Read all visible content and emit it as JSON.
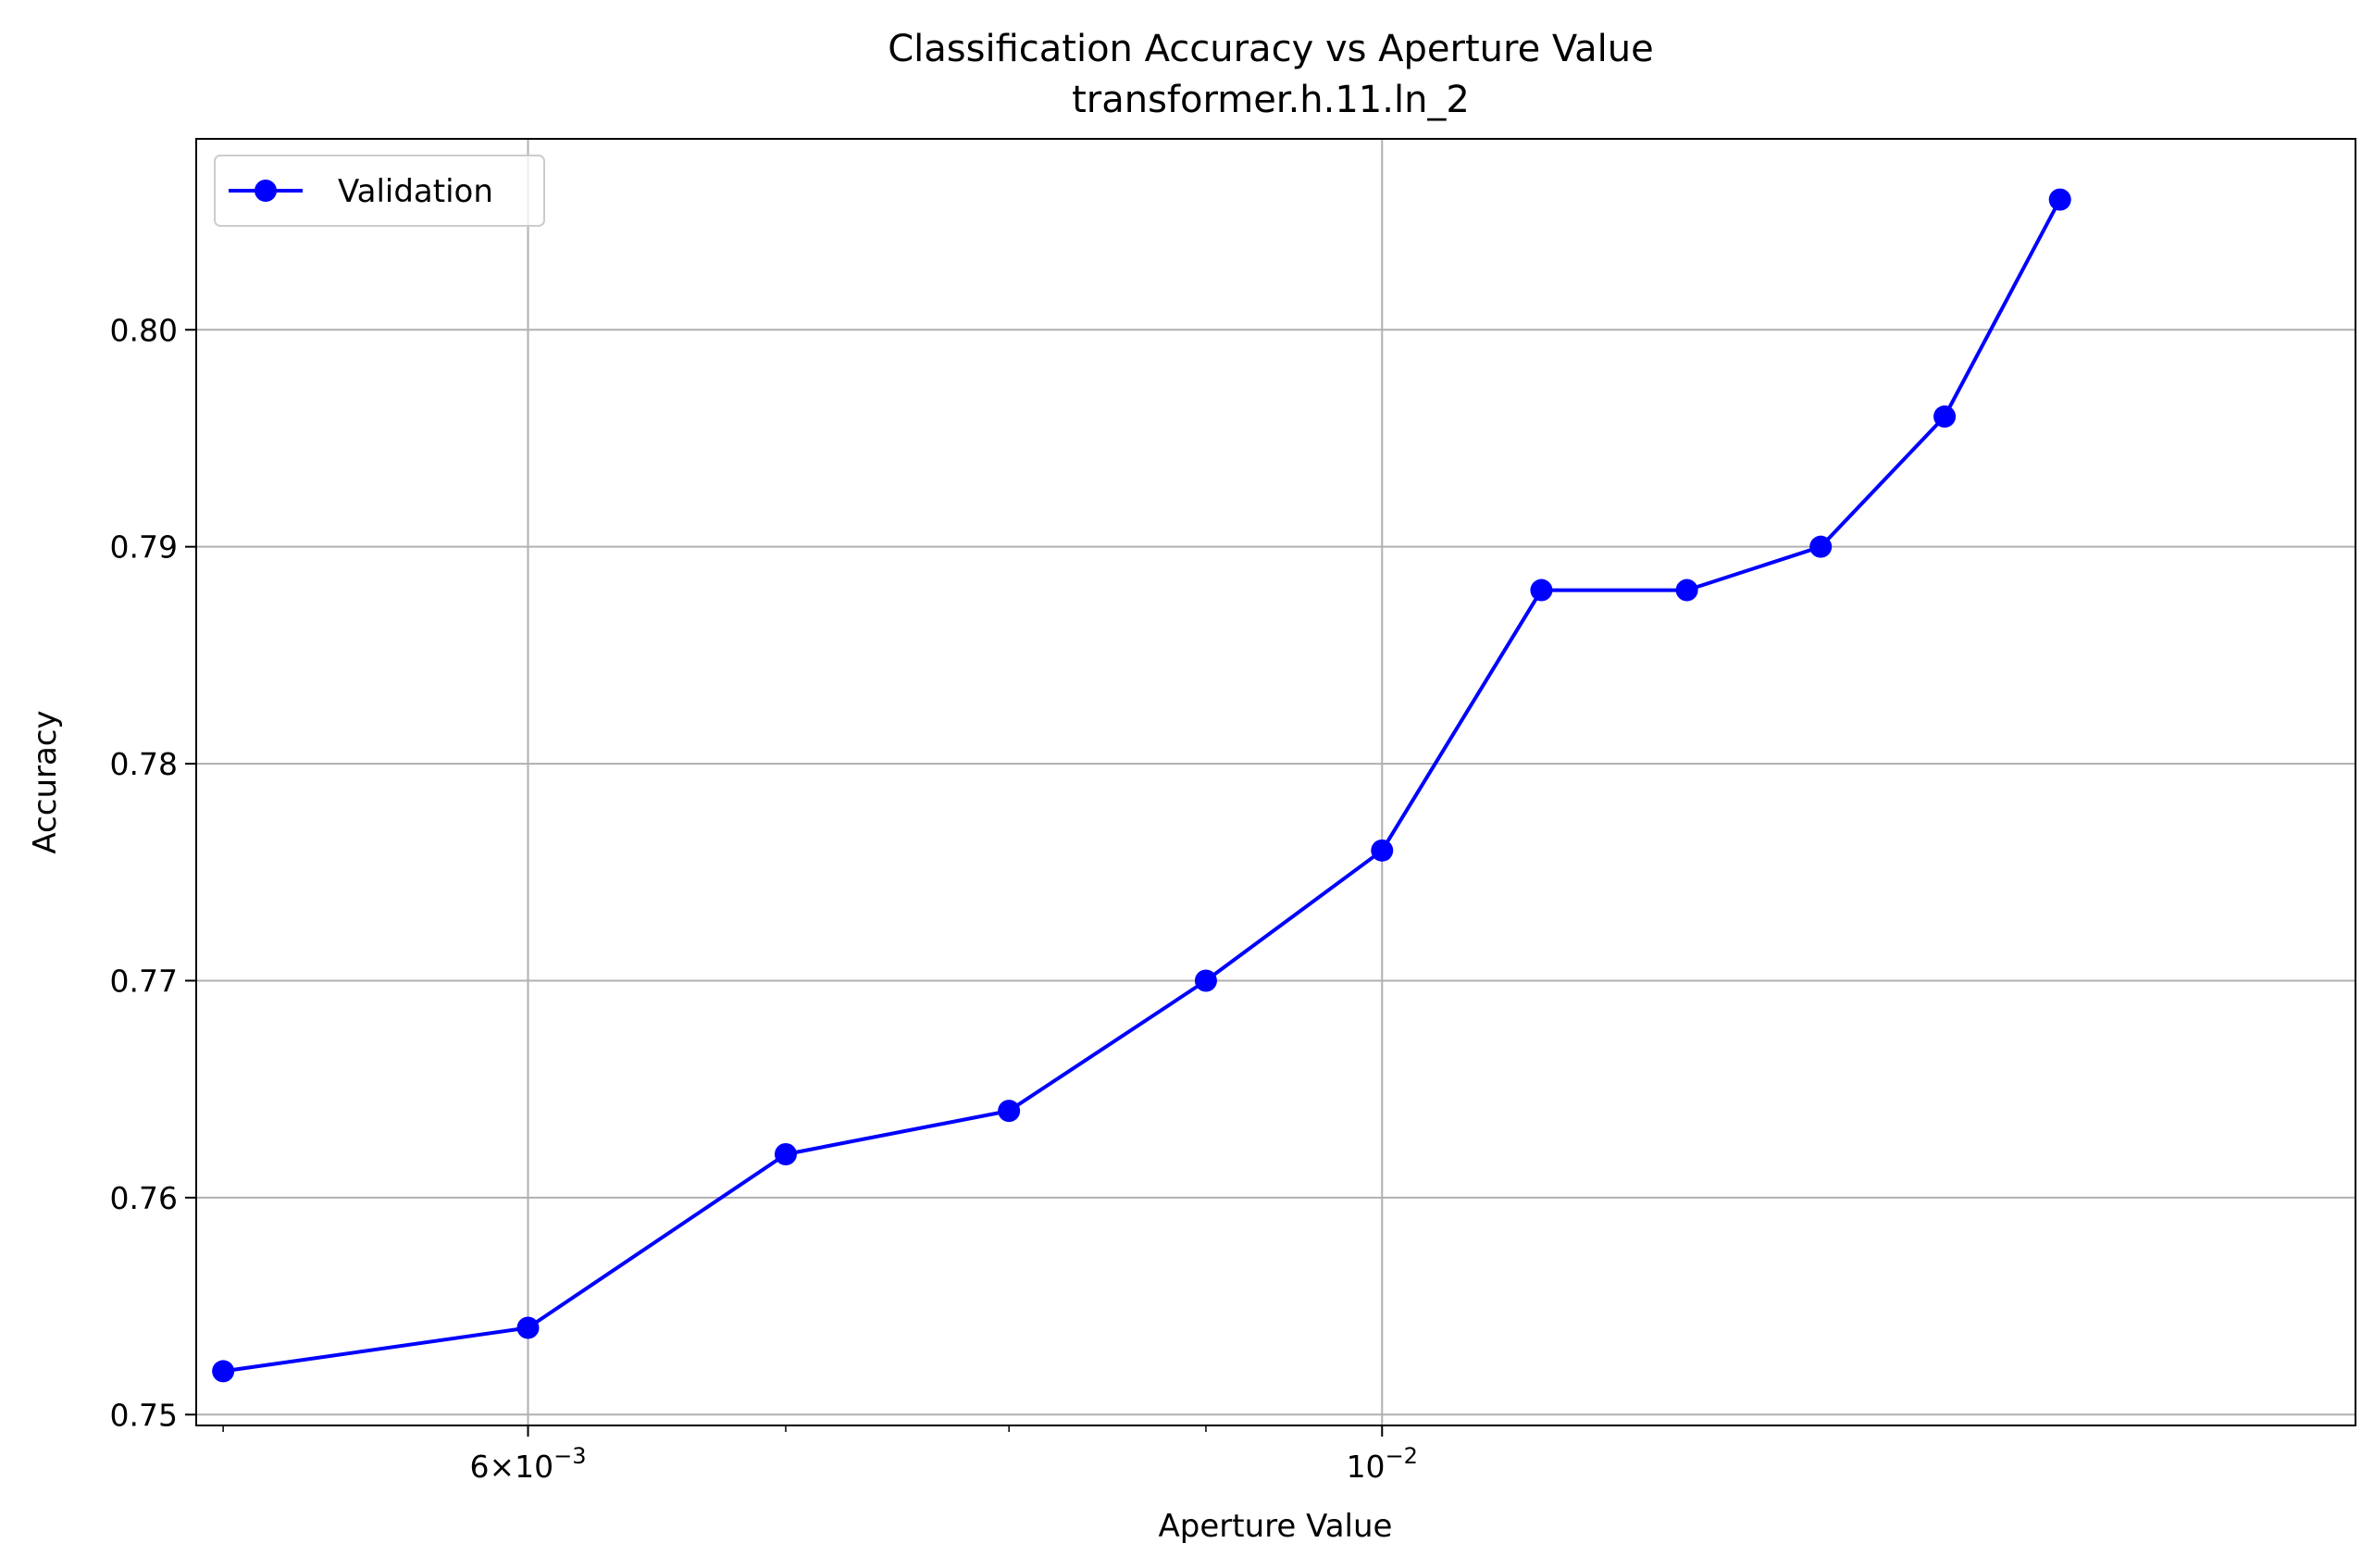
{
  "chart_data": {
    "type": "line",
    "title": "Classification Accuracy vs Aperture Value",
    "subtitle": "transformer.h.11.ln_2",
    "xlabel": "Aperture Value",
    "ylabel": "Accuracy",
    "xscale": "log",
    "xlim": [
      0.00492,
      0.0179
    ],
    "ylim": [
      0.7495,
      0.8088
    ],
    "x_ticks": [
      {
        "value": 0.006,
        "base": "6×10",
        "exp": "−3"
      },
      {
        "value": 0.01,
        "base": "10",
        "exp": "−2"
      }
    ],
    "x_minor_ticks": [
      0.005,
      0.007,
      0.008,
      0.009
    ],
    "y_ticks": [
      "0.75",
      "0.76",
      "0.77",
      "0.78",
      "0.79",
      "0.80"
    ],
    "grid": true,
    "legend_position": "top-left",
    "series": [
      {
        "name": "Validation",
        "color": "#0000ff",
        "marker": "circle",
        "x": [
          0.005,
          0.006,
          0.007,
          0.008,
          0.009,
          0.01,
          0.011,
          0.012,
          0.013,
          0.014,
          0.015
        ],
        "values": [
          0.752,
          0.754,
          0.762,
          0.764,
          0.77,
          0.776,
          0.788,
          0.788,
          0.79,
          0.796,
          0.806
        ]
      }
    ]
  }
}
